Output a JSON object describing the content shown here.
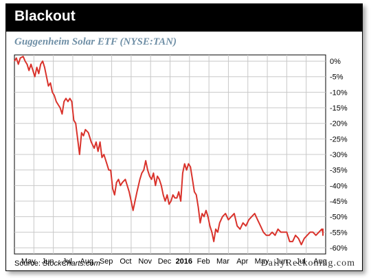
{
  "header": {
    "title": "Blackout"
  },
  "chart_title": "Guggenheim Solar ETF (NYSE:TAN)",
  "footer": {
    "source_label": "Source:",
    "source_name": "StockCharts.com",
    "brand": "DailyReckoning.com"
  },
  "colors": {
    "line": "#d9322b",
    "grid": "#c8c8c8",
    "header_bg": "#000000",
    "subtitle": "#6f8fa6"
  },
  "chart_data": {
    "type": "line",
    "title": "Guggenheim Solar ETF (NYSE:TAN)",
    "ylim": [
      -62,
      2
    ],
    "y_ticks": [
      0,
      -5,
      -10,
      -15,
      -20,
      -25,
      -30,
      -35,
      -40,
      -45,
      -50,
      -55,
      -60
    ],
    "y_tick_labels": [
      "0%",
      "-5%",
      "-10%",
      "-15%",
      "-20%",
      "-25%",
      "-30%",
      "-35%",
      "-40%",
      "-45%",
      "-50%",
      "-55%",
      "-60%"
    ],
    "xlim": [
      0,
      16
    ],
    "x_ticks": [
      {
        "label": "May",
        "x": 1
      },
      {
        "label": "Jun",
        "x": 2
      },
      {
        "label": "Jul",
        "x": 3
      },
      {
        "label": "Aug",
        "x": 4
      },
      {
        "label": "Sep",
        "x": 5
      },
      {
        "label": "Oct",
        "x": 6
      },
      {
        "label": "Nov",
        "x": 7
      },
      {
        "label": "Dec",
        "x": 8
      },
      {
        "label": "2016",
        "x": 9
      },
      {
        "label": "Feb",
        "x": 10
      },
      {
        "label": "Mar",
        "x": 11
      },
      {
        "label": "Apr",
        "x": 12
      },
      {
        "label": "May",
        "x": 13
      },
      {
        "label": "Jun",
        "x": 14
      },
      {
        "label": "Jul",
        "x": 15
      },
      {
        "label": "Aug",
        "x": 16
      }
    ],
    "grid": true,
    "series": [
      {
        "values": [
          [
            0.0,
            0
          ],
          [
            0.1,
            1
          ],
          [
            0.2,
            -1
          ],
          [
            0.3,
            1
          ],
          [
            0.45,
            1.5
          ],
          [
            0.55,
            0
          ],
          [
            0.65,
            -1
          ],
          [
            0.75,
            -3
          ],
          [
            0.85,
            -1
          ],
          [
            0.95,
            -3
          ],
          [
            1.05,
            -5
          ],
          [
            1.15,
            -2
          ],
          [
            1.25,
            -4
          ],
          [
            1.35,
            -1
          ],
          [
            1.45,
            0
          ],
          [
            1.55,
            -2
          ],
          [
            1.65,
            -5
          ],
          [
            1.75,
            -8
          ],
          [
            1.85,
            -7
          ],
          [
            1.95,
            -10
          ],
          [
            2.05,
            -11
          ],
          [
            2.15,
            -13
          ],
          [
            2.25,
            -14
          ],
          [
            2.35,
            -15
          ],
          [
            2.45,
            -17
          ],
          [
            2.55,
            -13
          ],
          [
            2.65,
            -12
          ],
          [
            2.75,
            -13
          ],
          [
            2.85,
            -12
          ],
          [
            2.95,
            -13
          ],
          [
            3.05,
            -19
          ],
          [
            3.15,
            -20
          ],
          [
            3.25,
            -25
          ],
          [
            3.35,
            -30
          ],
          [
            3.45,
            -23
          ],
          [
            3.55,
            -24
          ],
          [
            3.65,
            -22
          ],
          [
            3.8,
            -23
          ],
          [
            3.95,
            -26
          ],
          [
            4.1,
            -28
          ],
          [
            4.2,
            -26
          ],
          [
            4.3,
            -29
          ],
          [
            4.4,
            -26
          ],
          [
            4.5,
            -31
          ],
          [
            4.6,
            -30
          ],
          [
            4.75,
            -33
          ],
          [
            4.85,
            -35
          ],
          [
            4.95,
            -35
          ],
          [
            5.05,
            -41
          ],
          [
            5.15,
            -43
          ],
          [
            5.25,
            -39
          ],
          [
            5.35,
            -38
          ],
          [
            5.45,
            -40
          ],
          [
            5.55,
            -39
          ],
          [
            5.7,
            -38
          ],
          [
            5.8,
            -40
          ],
          [
            5.9,
            -42
          ],
          [
            6.0,
            -45
          ],
          [
            6.1,
            -48
          ],
          [
            6.2,
            -45
          ],
          [
            6.3,
            -42
          ],
          [
            6.45,
            -38
          ],
          [
            6.55,
            -36
          ],
          [
            6.65,
            -35
          ],
          [
            6.75,
            -32
          ],
          [
            6.85,
            -35
          ],
          [
            6.95,
            -37
          ],
          [
            7.05,
            -38
          ],
          [
            7.15,
            -36
          ],
          [
            7.25,
            -40
          ],
          [
            7.35,
            -37
          ],
          [
            7.45,
            -38
          ],
          [
            7.55,
            -40
          ],
          [
            7.65,
            -43
          ],
          [
            7.75,
            -45
          ],
          [
            7.85,
            -43
          ],
          [
            7.95,
            -46
          ],
          [
            8.05,
            -45
          ],
          [
            8.15,
            -43
          ],
          [
            8.25,
            -44
          ],
          [
            8.35,
            -44
          ],
          [
            8.45,
            -42
          ],
          [
            8.55,
            -45
          ],
          [
            8.65,
            -36
          ],
          [
            8.75,
            -33
          ],
          [
            8.85,
            -35
          ],
          [
            8.95,
            -33
          ],
          [
            9.05,
            -34
          ],
          [
            9.15,
            -38
          ],
          [
            9.25,
            -42
          ],
          [
            9.35,
            -43
          ],
          [
            9.45,
            -47
          ],
          [
            9.55,
            -52
          ],
          [
            9.65,
            -49
          ],
          [
            9.75,
            -50
          ],
          [
            9.85,
            -48
          ],
          [
            9.95,
            -50
          ],
          [
            10.05,
            -53
          ],
          [
            10.15,
            -55
          ],
          [
            10.25,
            -58
          ],
          [
            10.35,
            -54
          ],
          [
            10.45,
            -55
          ],
          [
            10.55,
            -52
          ],
          [
            10.7,
            -50
          ],
          [
            10.85,
            -49
          ],
          [
            11.0,
            -51
          ],
          [
            11.15,
            -50
          ],
          [
            11.3,
            -49
          ],
          [
            11.45,
            -53
          ],
          [
            11.6,
            -54
          ],
          [
            11.75,
            -52
          ],
          [
            11.9,
            -53
          ],
          [
            12.05,
            -51
          ],
          [
            12.2,
            -50
          ],
          [
            12.35,
            -49
          ],
          [
            12.5,
            -51
          ],
          [
            12.65,
            -53
          ],
          [
            12.8,
            -55
          ],
          [
            12.95,
            -56
          ],
          [
            13.1,
            -56
          ],
          [
            13.25,
            -55
          ],
          [
            13.4,
            -56
          ],
          [
            13.55,
            -54
          ],
          [
            13.7,
            -55
          ],
          [
            13.85,
            -55
          ],
          [
            14.0,
            -55
          ],
          [
            14.15,
            -58
          ],
          [
            14.3,
            -58
          ],
          [
            14.45,
            -56
          ],
          [
            14.6,
            -57
          ],
          [
            14.75,
            -59
          ],
          [
            14.9,
            -57
          ],
          [
            15.05,
            -56
          ],
          [
            15.2,
            -55
          ],
          [
            15.35,
            -55
          ],
          [
            15.5,
            -56
          ],
          [
            15.65,
            -55
          ],
          [
            15.8,
            -54
          ],
          [
            15.95,
            -55
          ],
          [
            16.1,
            -56
          ],
          [
            16.25,
            -54
          ],
          [
            16.4,
            -55
          ],
          [
            16.5,
            -55
          ]
        ]
      }
    ]
  }
}
